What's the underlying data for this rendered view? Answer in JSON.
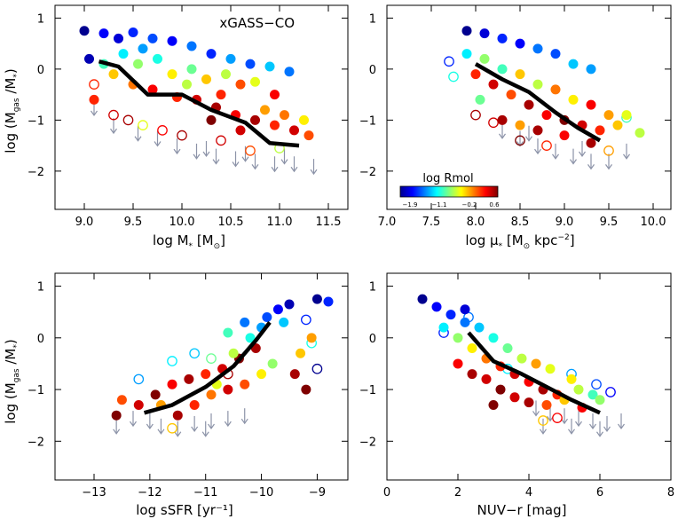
{
  "figure": {
    "annotation": "xGASS−CO",
    "colorbar": {
      "label": "log Rmol",
      "ticks": [
        "−1.9",
        "−1.1",
        "−0.2",
        "0.6"
      ],
      "range": [
        -1.9,
        0.6
      ],
      "colormap": [
        "#00008f",
        "#0000ff",
        "#007fff",
        "#00ffff",
        "#7fff7f",
        "#ffff00",
        "#ff7f00",
        "#ff0000",
        "#7f0000"
      ]
    },
    "upper_limit_color": "#8c93a8",
    "trend_color": "#000000"
  },
  "chart_data": [
    {
      "type": "scatter",
      "ylabel": "log (M_gas /M_*)",
      "xlim": [
        8.7,
        11.7
      ],
      "ylim": [
        -2.75,
        1.25
      ],
      "xticks": [
        9.0,
        9.5,
        10.0,
        10.5,
        11.0,
        11.5
      ],
      "xtick_labels": [
        "9.0",
        "9.5",
        "10.0",
        "10.5",
        "11.0",
        "11.5"
      ],
      "yticks": [
        -2,
        -1,
        0,
        1
      ],
      "ytick_labels": [
        "−2",
        "−1",
        "0",
        "1"
      ],
      "trend": {
        "x": [
          9.15,
          9.35,
          9.65,
          10.0,
          10.3,
          10.65,
          10.9,
          11.2
        ],
        "y": [
          0.15,
          0.05,
          -0.5,
          -0.5,
          -0.8,
          -1.05,
          -1.45,
          -1.5
        ]
      },
      "filled": [
        [
          9.0,
          0.75,
          -1.9
        ],
        [
          9.2,
          0.7,
          -1.6
        ],
        [
          9.35,
          0.6,
          -1.7
        ],
        [
          9.5,
          0.72,
          -1.5
        ],
        [
          9.7,
          0.6,
          -1.4
        ],
        [
          9.9,
          0.55,
          -1.6
        ],
        [
          10.1,
          0.45,
          -1.3
        ],
        [
          10.3,
          0.3,
          -1.5
        ],
        [
          10.5,
          0.2,
          -1.2
        ],
        [
          10.7,
          0.1,
          -1.4
        ],
        [
          10.9,
          0.05,
          -1.1
        ],
        [
          11.1,
          -0.05,
          -1.3
        ],
        [
          9.05,
          0.2,
          -1.8
        ],
        [
          9.2,
          0.1,
          -0.8
        ],
        [
          9.4,
          0.3,
          -1.0
        ],
        [
          9.55,
          0.1,
          -0.6
        ],
        [
          9.75,
          0.2,
          -0.9
        ],
        [
          9.9,
          -0.1,
          -0.3
        ],
        [
          10.1,
          0.0,
          -0.7
        ],
        [
          10.25,
          -0.2,
          -0.2
        ],
        [
          10.45,
          -0.1,
          -0.5
        ],
        [
          10.6,
          -0.3,
          0.1
        ],
        [
          10.75,
          -0.25,
          -0.4
        ],
        [
          10.95,
          -0.5,
          0.3
        ],
        [
          9.3,
          -0.1,
          -0.2
        ],
        [
          9.5,
          -0.3,
          0.0
        ],
        [
          9.7,
          -0.4,
          0.3
        ],
        [
          9.95,
          -0.55,
          0.2
        ],
        [
          10.15,
          -0.6,
          0.4
        ],
        [
          10.35,
          -0.75,
          0.5
        ],
        [
          10.55,
          -0.9,
          0.3
        ],
        [
          10.75,
          -1.0,
          0.5
        ],
        [
          10.95,
          -1.1,
          0.2
        ],
        [
          11.15,
          -1.2,
          0.4
        ],
        [
          11.3,
          -1.3,
          0.1
        ],
        [
          9.1,
          -0.6,
          0.2
        ],
        [
          10.3,
          -1.0,
          0.6
        ],
        [
          10.6,
          -1.2,
          0.4
        ],
        [
          10.85,
          -0.8,
          -0.1
        ],
        [
          11.05,
          -0.9,
          0.0
        ],
        [
          11.25,
          -1.0,
          -0.3
        ],
        [
          10.05,
          -0.3,
          -0.5
        ],
        [
          9.6,
          0.4,
          -1.2
        ],
        [
          10.4,
          -0.5,
          0.2
        ]
      ],
      "open": [
        [
          9.1,
          -0.3,
          0.2
        ],
        [
          9.3,
          -0.9,
          0.4
        ],
        [
          9.45,
          -1.0,
          0.5
        ],
        [
          9.6,
          -1.1,
          -0.4
        ],
        [
          9.8,
          -1.2,
          0.3
        ],
        [
          10.0,
          -1.3,
          0.5
        ],
        [
          10.4,
          -1.4,
          0.4
        ],
        [
          10.7,
          -1.6,
          0.1
        ],
        [
          11.0,
          -1.55,
          -0.5
        ]
      ],
      "limits": [
        [
          9.1,
          -0.75
        ],
        [
          9.3,
          -1.1
        ],
        [
          9.55,
          -1.25
        ],
        [
          9.75,
          -1.35
        ],
        [
          9.95,
          -1.5
        ],
        [
          10.15,
          -1.6
        ],
        [
          10.35,
          -1.7
        ],
        [
          10.55,
          -1.75
        ],
        [
          10.75,
          -1.8
        ],
        [
          10.95,
          -1.85
        ],
        [
          11.15,
          -1.85
        ],
        [
          11.35,
          -1.9
        ],
        [
          10.25,
          -1.55
        ],
        [
          10.65,
          -1.65
        ],
        [
          11.05,
          -1.7
        ]
      ]
    },
    {
      "type": "scatter",
      "ylabel": "",
      "xlim": [
        7.0,
        10.2
      ],
      "ylim": [
        -2.75,
        1.25
      ],
      "xticks": [
        7.0,
        7.5,
        8.0,
        8.5,
        9.0,
        9.5,
        10.0
      ],
      "xtick_labels": [
        "7.0",
        "7.5",
        "8.0",
        "8.5",
        "9.0",
        "9.5",
        "10.0"
      ],
      "yticks": [
        -2,
        -1,
        0,
        1
      ],
      "ytick_labels": [
        "−2",
        "−1",
        "0",
        "1"
      ],
      "trend": {
        "x": [
          8.0,
          8.3,
          8.6,
          8.9,
          9.15,
          9.4
        ],
        "y": [
          0.1,
          -0.2,
          -0.45,
          -0.85,
          -1.15,
          -1.4
        ]
      },
      "filled": [
        [
          7.9,
          0.75,
          -1.9
        ],
        [
          8.1,
          0.7,
          -1.7
        ],
        [
          8.3,
          0.6,
          -1.5
        ],
        [
          8.5,
          0.5,
          -1.6
        ],
        [
          8.7,
          0.4,
          -1.3
        ],
        [
          8.9,
          0.3,
          -1.4
        ],
        [
          9.1,
          0.1,
          -1.1
        ],
        [
          9.3,
          0.0,
          -1.2
        ],
        [
          7.9,
          0.3,
          -1.0
        ],
        [
          8.1,
          0.2,
          -0.6
        ],
        [
          8.3,
          0.0,
          -0.8
        ],
        [
          8.5,
          -0.1,
          -0.2
        ],
        [
          8.7,
          -0.3,
          -0.5
        ],
        [
          8.9,
          -0.4,
          0.0
        ],
        [
          9.1,
          -0.6,
          -0.3
        ],
        [
          9.3,
          -0.7,
          0.3
        ],
        [
          9.5,
          -0.9,
          -0.1
        ],
        [
          8.0,
          -0.1,
          0.2
        ],
        [
          8.2,
          -0.3,
          0.4
        ],
        [
          8.4,
          -0.5,
          0.1
        ],
        [
          8.6,
          -0.7,
          0.5
        ],
        [
          8.8,
          -0.9,
          0.3
        ],
        [
          9.0,
          -1.0,
          0.6
        ],
        [
          9.2,
          -1.1,
          0.4
        ],
        [
          9.4,
          -1.2,
          0.2
        ],
        [
          8.3,
          -1.0,
          0.5
        ],
        [
          8.7,
          -1.2,
          0.5
        ],
        [
          9.0,
          -1.3,
          0.3
        ],
        [
          9.3,
          -1.45,
          0.5
        ],
        [
          9.6,
          -1.1,
          -0.2
        ],
        [
          9.85,
          -1.25,
          -0.5
        ],
        [
          9.7,
          -0.9,
          -0.4
        ],
        [
          8.5,
          -1.1,
          -0.1
        ],
        [
          8.05,
          -0.6,
          -0.7
        ]
      ],
      "open": [
        [
          7.7,
          0.15,
          -1.5
        ],
        [
          7.75,
          -0.15,
          -0.9
        ],
        [
          8.0,
          -0.9,
          0.5
        ],
        [
          8.2,
          -1.05,
          0.4
        ],
        [
          8.5,
          -1.4,
          0.6
        ],
        [
          8.8,
          -1.5,
          0.2
        ],
        [
          9.5,
          -1.6,
          -0.1
        ],
        [
          9.7,
          -0.95,
          -0.8
        ]
      ],
      "limits": [
        [
          8.3,
          -1.2
        ],
        [
          8.5,
          -1.35
        ],
        [
          8.7,
          -1.5
        ],
        [
          8.9,
          -1.6
        ],
        [
          9.1,
          -1.7
        ],
        [
          9.3,
          -1.8
        ],
        [
          9.5,
          -1.8
        ],
        [
          9.7,
          -1.6
        ],
        [
          8.6,
          -1.25
        ],
        [
          9.2,
          -1.55
        ]
      ]
    },
    {
      "type": "scatter",
      "xlabel": "log sSFR [yr⁻¹]",
      "ylabel": "log (M_gas /M_*)",
      "xlim": [
        -13.7,
        -8.45
      ],
      "ylim": [
        -2.75,
        1.25
      ],
      "xticks": [
        -13,
        -12,
        -11,
        -10,
        -9
      ],
      "xtick_labels": [
        "−13",
        "−12",
        "−11",
        "−10",
        "−9"
      ],
      "yticks": [
        -2,
        -1,
        0,
        1
      ],
      "ytick_labels": [
        "−2",
        "−1",
        "0",
        "1"
      ],
      "trend": {
        "x": [
          -12.1,
          -11.6,
          -11.0,
          -10.5,
          -10.1,
          -9.85
        ],
        "y": [
          -1.45,
          -1.3,
          -0.95,
          -0.55,
          -0.05,
          0.3
        ]
      },
      "filled": [
        [
          -12.5,
          -1.2,
          0.1
        ],
        [
          -12.2,
          -1.3,
          0.4
        ],
        [
          -11.9,
          -1.1,
          0.6
        ],
        [
          -11.6,
          -0.9,
          0.3
        ],
        [
          -11.3,
          -0.8,
          0.5
        ],
        [
          -11.0,
          -0.7,
          0.2
        ],
        [
          -10.7,
          -0.6,
          0.4
        ],
        [
          -10.4,
          -0.4,
          0.6
        ],
        [
          -10.1,
          -0.2,
          0.5
        ],
        [
          -11.5,
          -1.5,
          0.5
        ],
        [
          -11.2,
          -1.3,
          0.2
        ],
        [
          -10.9,
          -1.1,
          0.0
        ],
        [
          -10.6,
          -1.0,
          0.4
        ],
        [
          -10.3,
          -0.9,
          0.1
        ],
        [
          -10.0,
          -0.7,
          -0.3
        ],
        [
          -9.8,
          -0.5,
          -0.6
        ],
        [
          -10.5,
          -0.3,
          -0.5
        ],
        [
          -10.2,
          0.0,
          -0.9
        ],
        [
          -10.0,
          0.2,
          -1.2
        ],
        [
          -9.9,
          0.4,
          -1.4
        ],
        [
          -9.7,
          0.55,
          -1.6
        ],
        [
          -9.5,
          0.65,
          -1.8
        ],
        [
          -10.3,
          0.3,
          -1.3
        ],
        [
          -10.6,
          0.1,
          -0.8
        ],
        [
          -9.6,
          0.3,
          -1.1
        ],
        [
          -9.3,
          -0.3,
          -0.2
        ],
        [
          -9.1,
          0.0,
          -0.1
        ],
        [
          -9.4,
          -0.7,
          0.5
        ],
        [
          -9.2,
          -1.0,
          0.6
        ],
        [
          -12.6,
          -1.5,
          0.6
        ],
        [
          -11.8,
          -1.3,
          -0.1
        ],
        [
          -10.8,
          -0.9,
          -0.4
        ],
        [
          -9.0,
          0.75,
          -1.9
        ],
        [
          -8.8,
          0.7,
          -1.5
        ]
      ],
      "open": [
        [
          -12.2,
          -0.8,
          -1.2
        ],
        [
          -11.6,
          -0.45,
          -1.0
        ],
        [
          -11.2,
          -0.3,
          -1.1
        ],
        [
          -10.9,
          -0.4,
          -0.7
        ],
        [
          -10.6,
          -0.7,
          0.5
        ],
        [
          -11.6,
          -1.75,
          -0.2
        ],
        [
          -9.1,
          -0.1,
          -0.9
        ],
        [
          -9.0,
          -0.6,
          -1.9
        ],
        [
          -9.2,
          0.35,
          -1.5
        ]
      ],
      "limits": [
        [
          -12.3,
          -1.55
        ],
        [
          -12.0,
          -1.6
        ],
        [
          -11.8,
          -1.7
        ],
        [
          -11.5,
          -1.75
        ],
        [
          -11.2,
          -1.65
        ],
        [
          -10.9,
          -1.6
        ],
        [
          -10.6,
          -1.55
        ],
        [
          -10.3,
          -1.5
        ],
        [
          -12.6,
          -1.7
        ],
        [
          -11.0,
          -1.75
        ]
      ]
    },
    {
      "type": "scatter",
      "xlabel": "NUV−r [mag]",
      "ylabel": "",
      "xlim": [
        0.0,
        8.0
      ],
      "ylim": [
        -2.75,
        1.25
      ],
      "xticks": [
        0,
        2,
        4,
        6,
        8
      ],
      "xtick_labels": [
        "0",
        "2",
        "4",
        "6",
        "8"
      ],
      "yticks": [
        -2,
        -1,
        0,
        1
      ],
      "ytick_labels": [
        "−2",
        "−1",
        "0",
        "1"
      ],
      "trend": {
        "x": [
          2.3,
          3.0,
          3.8,
          4.5,
          5.2,
          6.0
        ],
        "y": [
          0.1,
          -0.45,
          -0.7,
          -0.95,
          -1.2,
          -1.45
        ]
      },
      "filled": [
        [
          1.0,
          0.75,
          -1.9
        ],
        [
          1.4,
          0.6,
          -1.6
        ],
        [
          1.8,
          0.45,
          -1.5
        ],
        [
          2.2,
          0.3,
          -1.3
        ],
        [
          2.6,
          0.2,
          -1.1
        ],
        [
          3.0,
          0.0,
          -0.9
        ],
        [
          3.4,
          -0.2,
          -0.7
        ],
        [
          3.8,
          -0.4,
          -0.5
        ],
        [
          1.6,
          0.2,
          -1.0
        ],
        [
          2.0,
          0.0,
          -0.6
        ],
        [
          2.4,
          -0.2,
          -0.3
        ],
        [
          2.8,
          -0.4,
          0.0
        ],
        [
          3.2,
          -0.55,
          0.2
        ],
        [
          3.6,
          -0.7,
          0.4
        ],
        [
          4.0,
          -0.85,
          0.3
        ],
        [
          4.4,
          -1.0,
          0.5
        ],
        [
          4.8,
          -1.1,
          0.2
        ],
        [
          2.0,
          -0.5,
          0.3
        ],
        [
          2.4,
          -0.7,
          0.5
        ],
        [
          2.8,
          -0.8,
          0.4
        ],
        [
          3.2,
          -1.0,
          0.6
        ],
        [
          3.6,
          -1.15,
          0.4
        ],
        [
          4.0,
          -1.25,
          0.5
        ],
        [
          4.5,
          -1.3,
          0.1
        ],
        [
          5.0,
          -1.2,
          -0.2
        ],
        [
          5.4,
          -1.0,
          -0.5
        ],
        [
          5.8,
          -1.1,
          -0.8
        ],
        [
          4.6,
          -0.6,
          -0.4
        ],
        [
          5.2,
          -0.8,
          -0.3
        ],
        [
          3.0,
          -1.3,
          0.6
        ],
        [
          2.2,
          0.55,
          -1.7
        ],
        [
          5.5,
          -1.35,
          0.3
        ],
        [
          4.2,
          -0.5,
          -0.1
        ],
        [
          6.0,
          -1.2,
          -0.6
        ]
      ],
      "open": [
        [
          1.6,
          0.1,
          -1.5
        ],
        [
          2.3,
          0.4,
          -1.3
        ],
        [
          3.4,
          -0.6,
          -1.0
        ],
        [
          5.2,
          -0.7,
          -1.2
        ],
        [
          5.9,
          -0.9,
          -1.4
        ],
        [
          6.3,
          -1.05,
          -1.6
        ],
        [
          4.8,
          -1.55,
          0.3
        ],
        [
          4.4,
          -1.6,
          -0.2
        ]
      ],
      "limits": [
        [
          4.2,
          -1.35
        ],
        [
          4.6,
          -1.45
        ],
        [
          5.0,
          -1.5
        ],
        [
          5.4,
          -1.55
        ],
        [
          5.8,
          -1.6
        ],
        [
          6.2,
          -1.65
        ],
        [
          6.6,
          -1.6
        ],
        [
          5.2,
          -1.7
        ],
        [
          4.4,
          -1.7
        ],
        [
          6.0,
          -1.75
        ]
      ]
    }
  ]
}
